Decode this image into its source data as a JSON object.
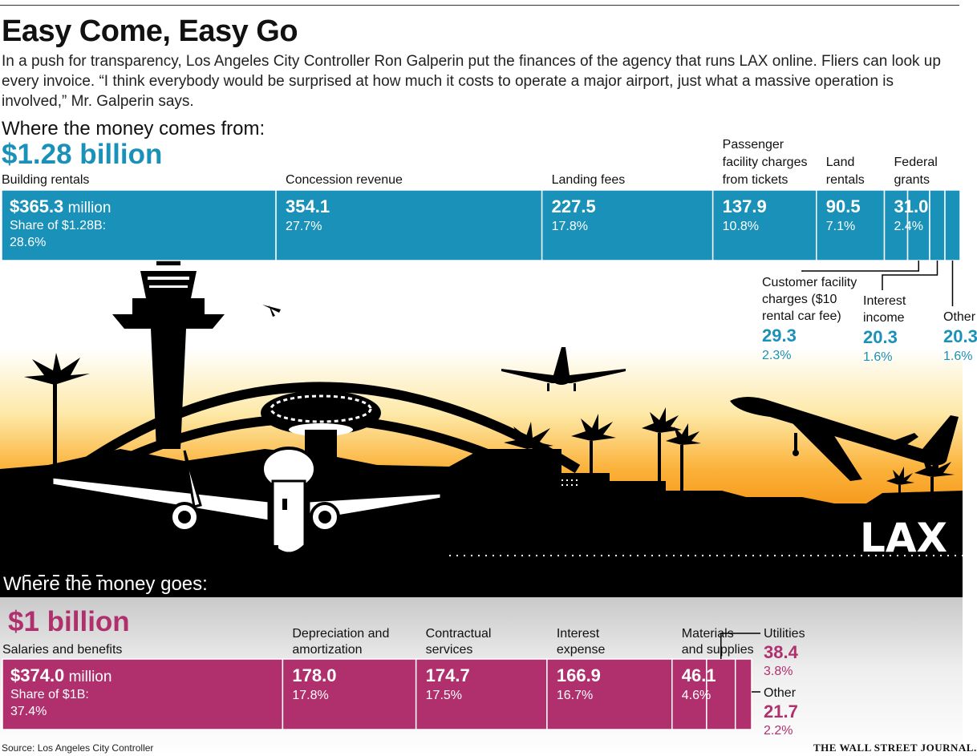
{
  "title": "Easy Come, Easy Go",
  "intro": "In a push for transparency, Los Angeles City Controller Ron Galperin put the finances of the agency that runs LAX online. Fliers can look up every invoice. “I think everybody would be surprised at how much it costs to operate a major airport, just what a massive operation is involved,” Mr. Galperin says.",
  "scene": {
    "sign": "LAX"
  },
  "colors": {
    "income": "#1a91b8",
    "expense": "#b0306e",
    "income_text": "#1a91b8",
    "expense_text": "#b0306e"
  },
  "chart_data": [
    {
      "type": "bar",
      "orientation": "stacked-horizontal",
      "title": "Where the money comes from:",
      "total": "$1.28 billion",
      "total_value": 1280,
      "unit": "million",
      "share_label": "Share of $1.28B:",
      "categories": [
        "Building rentals",
        "Concession revenue",
        "Landing fees",
        "Passenger facility charges from tickets",
        "Land rentals",
        "Federal grants",
        "Customer facility charges ($10 rental car fee)",
        "Interest income",
        "Other"
      ],
      "values": [
        365.3,
        354.1,
        227.5,
        137.9,
        90.5,
        31.0,
        29.3,
        20.3,
        20.3
      ],
      "value_labels": [
        "$365.3",
        "354.1",
        "227.5",
        "137.9",
        "90.5",
        "31.0",
        "29.3",
        "20.3",
        "20.3"
      ],
      "first_value_unit": "million",
      "shares": [
        "28.6%",
        "27.7%",
        "17.8%",
        "10.8%",
        "7.1%",
        "2.4%",
        "2.3%",
        "1.6%",
        "1.6%"
      ],
      "label_lines": [
        [
          "Building rentals"
        ],
        [
          "Concession revenue"
        ],
        [
          "Landing fees"
        ],
        [
          "Passenger",
          "facility charges",
          "from tickets"
        ],
        [
          "Land",
          "rentals"
        ],
        [
          "Federal",
          "grants"
        ],
        [
          "Customer facility",
          "charges ($10",
          "rental car fee)"
        ],
        [
          "Interest",
          "income"
        ],
        [
          "Other"
        ]
      ]
    },
    {
      "type": "bar",
      "orientation": "stacked-horizontal",
      "title": "Where the money goes:",
      "total": "$1 billion",
      "total_value": 1000,
      "unit": "million",
      "share_label": "Share of $1B:",
      "categories": [
        "Salaries and benefits",
        "Depreciation and amortization",
        "Contractual services",
        "Interest expense",
        "Materials and supplies",
        "Utilities",
        "Other"
      ],
      "values": [
        374.0,
        178.0,
        174.7,
        166.9,
        46.1,
        38.4,
        21.7
      ],
      "value_labels": [
        "$374.0",
        "178.0",
        "174.7",
        "166.9",
        "46.1",
        "38.4",
        "21.7"
      ],
      "first_value_unit": "million",
      "shares": [
        "37.4%",
        "17.8%",
        "17.5%",
        "16.7%",
        "4.6%",
        "3.8%",
        "2.2%"
      ],
      "label_lines": [
        [
          "Salaries and benefits"
        ],
        [
          "Depreciation and",
          "amortization"
        ],
        [
          "Contractual",
          "services"
        ],
        [
          "Interest",
          "expense"
        ],
        [
          "Materials",
          "and supplies"
        ],
        [
          "Utilities"
        ],
        [
          "Other"
        ]
      ]
    }
  ],
  "source": "Source: Los Angeles City Controller",
  "brand": "THE WALL STREET JOURNAL."
}
